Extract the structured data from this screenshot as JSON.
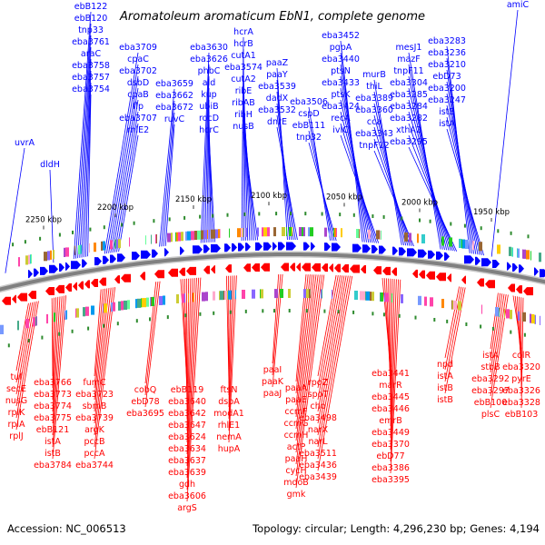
{
  "title": "Aromatoleum aromaticum EbN1, complete genome",
  "accession": "Accession: NC_006513",
  "summary": "Topology: circular; Length: 4,296,230 bp; Genes: 4,194",
  "colors": {
    "forward": "#0000ff",
    "reverse": "#ff0000",
    "backbone": "#808080",
    "tick": "#2e8b2e"
  },
  "kbp_ticks": [
    "2250 kbp",
    "2200 kbp",
    "2150 kbp",
    "2100 kbp",
    "2050 kbp",
    "2000 kbp",
    "1950 kbp"
  ],
  "forward_genes": [
    "ebB122",
    "ebB120",
    "tnp33",
    "eba3761",
    "araC",
    "eba3758",
    "eba3757",
    "eba3754",
    "uvrA",
    "dldH",
    "eba3709",
    "cpaC",
    "eba3702",
    "dsbD",
    "cpaB",
    "flp",
    "eba3707",
    "rhlE2",
    "eba3659",
    "eba3662",
    "eba3672",
    "ruvC",
    "eba3630",
    "eba3626",
    "phbC",
    "ald",
    "kup",
    "ubiB",
    "rocD",
    "hcrC",
    "hcrA",
    "hcrB",
    "cutA1",
    "eba3574",
    "cutA2",
    "ribE",
    "ribAB",
    "ribH",
    "nusB",
    "paaZ",
    "paaY",
    "eba3539",
    "dadX",
    "eba3532",
    "dnrE",
    "eba3506",
    "cspD",
    "ebB111",
    "tnp32",
    "eba3452",
    "pgpA",
    "eba3440",
    "ptsN",
    "eba3433",
    "ptsK",
    "eba3424",
    "recA",
    "ivlC",
    "murB",
    "thiL",
    "eba3389",
    "eba3360",
    "cca",
    "eba3343",
    "tnpF12",
    "mesJ1",
    "mazF",
    "tnpF11",
    "eba3304",
    "eba3285",
    "eba3284",
    "eba3282",
    "xthA2",
    "eba3295",
    "eba3283",
    "eba3236",
    "eba3210",
    "ebD73",
    "eba3200",
    "eba3247",
    "istB",
    "istA",
    "amiC"
  ],
  "reverse_genes": [
    "tuf",
    "secE",
    "nusG",
    "rplK",
    "rplA",
    "rplJ",
    "eba3766",
    "eba3773",
    "eba3774",
    "eba3775",
    "ebB121",
    "istA",
    "istB",
    "eba3784",
    "fumC",
    "eba3723",
    "sbmB",
    "eba3739",
    "argK",
    "pccB",
    "pccA",
    "eba3744",
    "cobQ",
    "ebD78",
    "eba3695",
    "ebB119",
    "eba3640",
    "eba3642",
    "eba3647",
    "eba3624",
    "eba3634",
    "eba3637",
    "eba3639",
    "gdh",
    "eba3606",
    "argS",
    "ftsN",
    "dsbA",
    "modA1",
    "rhlE1",
    "nemA",
    "hupA",
    "paaI",
    "paaK",
    "paaJ",
    "paaA",
    "paaE",
    "ccmF",
    "ccmG",
    "ccmH",
    "actP",
    "paaH",
    "cycH",
    "mdoB",
    "gmk",
    "rpoZ",
    "spoT",
    "cho",
    "eba3498",
    "narX",
    "narL",
    "eba3511",
    "eba3436",
    "eba3439",
    "eba3441",
    "marR",
    "eba3445",
    "eba3446",
    "emrB",
    "eba3449",
    "eba3370",
    "ebD77",
    "eba3386",
    "eba3395",
    "npd",
    "istA",
    "istB",
    "istB",
    "istA",
    "stbB",
    "eba3292",
    "eba3297",
    "ebB100",
    "plsC",
    "colR",
    "eba3320",
    "pyrE",
    "eba3326",
    "eba3328",
    "ebB103"
  ]
}
